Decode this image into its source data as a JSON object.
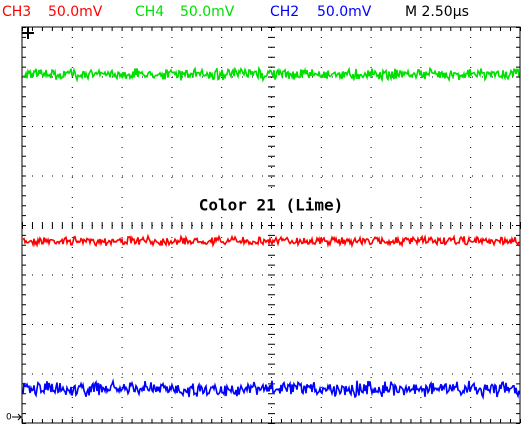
{
  "header": {
    "channels": [
      {
        "label": "CH3",
        "scale": "50.0mV",
        "color": "#ff0000"
      },
      {
        "label": "CH4",
        "scale": "50.0mV",
        "color": "#00e000"
      },
      {
        "label": "CH2",
        "scale": "50.0mV",
        "color": "#0000ff"
      }
    ],
    "timebase": "M 2.50µs"
  },
  "annotation": "Color 21 (Lime)",
  "ground_marker": "0"
}
